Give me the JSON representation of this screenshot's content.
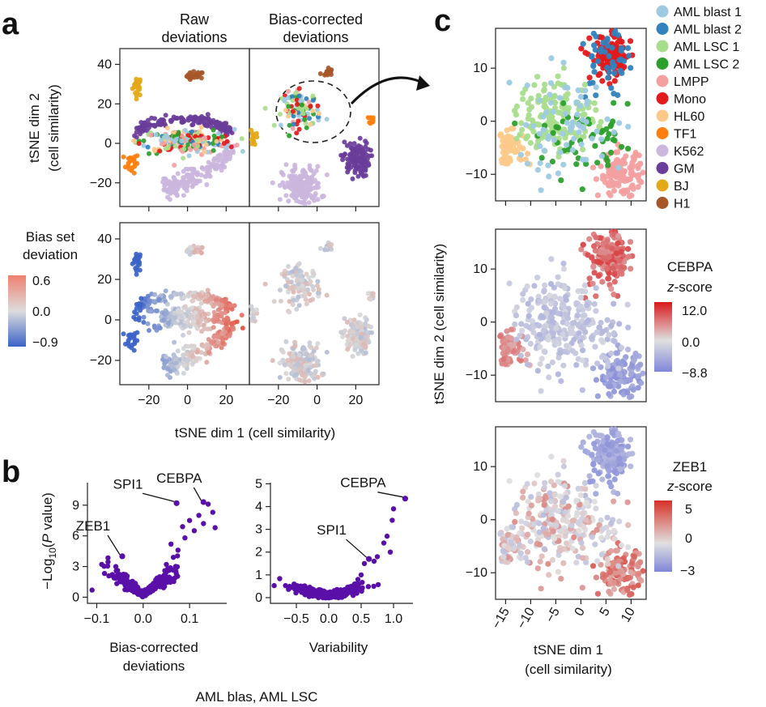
{
  "figure": {
    "panel_letters": [
      "a",
      "b",
      "c"
    ],
    "captions": {
      "bottom_note": "AML blas, AML LSC"
    }
  },
  "colors": {
    "AML blast 1": "#9ecae1",
    "AML blast 2": "#3182bd",
    "AML LSC 1": "#a8dd8c",
    "AML LSC 2": "#2ca02c",
    "LMPP": "#f4a0a0",
    "Mono": "#e31a1c",
    "HL60": "#fcc98a",
    "TF1": "#ff7f0e",
    "K562": "#cbb6dd",
    "GM": "#6a3d9a",
    "BJ": "#e3a916",
    "H1": "#a65628",
    "volcano": "#5a10a8",
    "div_low": "#3b63c8",
    "div_mid": "#d9d9d9",
    "div_high": "#e84c3d"
  },
  "chart_data": [
    {
      "id": "a_raw_celltype",
      "type": "scatter",
      "title": "Raw\ndeviations",
      "xlabel": "tSNE dim 1 (cell similarity)",
      "ylabel": "tSNE dim 2\n(cell similarity)",
      "xlim": [
        -35,
        32
      ],
      "ylim": [
        -32,
        48
      ],
      "xticks": [
        -20,
        0,
        20
      ],
      "yticks": [
        -20,
        0,
        20,
        40
      ],
      "clusters": [
        {
          "group": "BJ",
          "center": [
            -26,
            29
          ],
          "spread": [
            1.2,
            2.5
          ],
          "n": 22
        },
        {
          "group": "H1",
          "center": [
            4,
            34
          ],
          "spread": [
            2.2,
            1.2
          ],
          "n": 22
        },
        {
          "group": "TF1",
          "center": [
            -29,
            -10
          ],
          "spread": [
            2,
            2.5
          ],
          "n": 20
        },
        {
          "group": "GM",
          "shape": "arc",
          "center": [
            -2,
            6
          ],
          "radius": [
            24,
            9
          ],
          "n": 150
        },
        {
          "group": "K562",
          "shape": "swoosh",
          "center": [
            10,
            -14
          ],
          "n": 170
        },
        {
          "group": "mixed",
          "center": [
            0,
            1
          ],
          "spread": [
            12,
            3
          ],
          "n": 220
        }
      ]
    },
    {
      "id": "a_corrected_celltype",
      "type": "scatter",
      "title": "Bias-corrected\ndeviations",
      "xlim": [
        -35,
        32
      ],
      "ylim": [
        -32,
        48
      ],
      "xticks": [
        -20,
        0,
        20
      ],
      "clusters": [
        {
          "group": "H1",
          "center": [
            5,
            36
          ],
          "spread": [
            1.5,
            1.2
          ],
          "n": 15
        },
        {
          "group": "BJ",
          "center": [
            -33,
            3
          ],
          "spread": [
            0.8,
            2.5
          ],
          "n": 14
        },
        {
          "group": "TF1",
          "center": [
            29,
            12
          ],
          "spread": [
            1,
            1
          ],
          "n": 8
        },
        {
          "group": "GM",
          "center": [
            20,
            -8
          ],
          "spread": [
            3.5,
            4.5
          ],
          "n": 120
        },
        {
          "group": "K562",
          "center": [
            -8,
            -22
          ],
          "spread": [
            5,
            5
          ],
          "n": 180
        },
        {
          "group": "mixed",
          "center": [
            -8,
            17
          ],
          "spread": [
            5,
            4.5
          ],
          "n": 110
        }
      ]
    },
    {
      "id": "a_raw_bias",
      "type": "scatter",
      "colorbar": {
        "title": "Bias set\ndeviation",
        "ticks": [
          "0.6",
          "0.0",
          "−0.9"
        ]
      },
      "xlim": [
        -35,
        32
      ],
      "ylim": [
        -32,
        48
      ],
      "xticks": [
        -20,
        0,
        20
      ],
      "yticks": [
        -20,
        0,
        20,
        40
      ]
    },
    {
      "id": "a_corrected_bias",
      "type": "scatter",
      "xlim": [
        -35,
        32
      ],
      "ylim": [
        -32,
        48
      ],
      "xticks": [
        -20,
        0,
        20
      ]
    },
    {
      "id": "b_volcano_dev",
      "type": "scatter",
      "xlabel": "Bias-corrected\ndeviations",
      "ylabel": "−Log10(P value)",
      "xlim": [
        -0.12,
        0.18
      ],
      "ylim": [
        -0.6,
        11.2
      ],
      "xticks": [
        -0.1,
        0.0,
        0.1
      ],
      "xticklabels": [
        "−0.1",
        "0.0",
        "0.1"
      ],
      "yticks": [
        0,
        3,
        6,
        9
      ],
      "highlights": [
        {
          "label": "CEBPA",
          "x": 0.13,
          "y": 9.3
        },
        {
          "label": "SPI1",
          "x": 0.072,
          "y": 9.2
        },
        {
          "label": "ZEB1",
          "x": -0.045,
          "y": 4.0
        }
      ],
      "extra_points": [
        [
          0.14,
          9.1
        ],
        [
          0.15,
          8.3
        ],
        [
          0.155,
          6.8
        ],
        [
          0.12,
          8.0
        ],
        [
          0.11,
          6.5
        ],
        [
          0.1,
          7.5
        ],
        [
          0.09,
          5.8
        ],
        [
          0.13,
          7.2
        ],
        [
          0.085,
          6.9
        ],
        [
          0.06,
          5.2
        ],
        [
          0.075,
          4.6
        ],
        [
          0.065,
          3.9
        ],
        [
          0.05,
          3.2
        ],
        [
          0.07,
          3.0
        ],
        [
          -0.06,
          2.0
        ],
        [
          -0.05,
          1.6
        ],
        [
          -0.11,
          0.7
        ]
      ]
    },
    {
      "id": "b_variability",
      "type": "scatter",
      "xlabel": "Variability",
      "xlim": [
        -0.9,
        1.3
      ],
      "ylim": [
        -0.25,
        5.05
      ],
      "xticks": [
        -0.5,
        0.0,
        0.5,
        1.0
      ],
      "xticklabels": [
        "−0.5",
        "0.0",
        "0.5",
        "1.0"
      ],
      "yticks": [
        0,
        1,
        2,
        3,
        4,
        5
      ],
      "highlights": [
        {
          "label": "CEBPA",
          "x": 1.18,
          "y": 4.35
        },
        {
          "label": "SPI1",
          "x": 0.62,
          "y": 1.7
        }
      ],
      "extra_points": [
        [
          1.0,
          3.9
        ],
        [
          0.98,
          3.4
        ],
        [
          0.9,
          2.7
        ],
        [
          0.85,
          2.4
        ],
        [
          0.95,
          2.0
        ],
        [
          0.75,
          1.8
        ],
        [
          0.7,
          1.6
        ],
        [
          0.55,
          1.5
        ],
        [
          0.5,
          1.0
        ],
        [
          0.45,
          0.8
        ],
        [
          0.4,
          0.6
        ],
        [
          0.35,
          0.5
        ]
      ]
    },
    {
      "id": "c_celltype",
      "type": "scatter",
      "xlim": [
        -17,
        13
      ],
      "ylim": [
        -15,
        17.5
      ],
      "yticks": [
        -10,
        0,
        10
      ],
      "legend": [
        "AML blast 1",
        "AML blast 2",
        "AML LSC 1",
        "AML LSC 2",
        "LMPP",
        "Mono",
        "HL60",
        "TF1",
        "K562",
        "GM",
        "BJ",
        "H1"
      ]
    },
    {
      "id": "c_cebpa",
      "type": "scatter",
      "ylabel": "tSNE dim 2 (cell similarity)",
      "xlim": [
        -17,
        13
      ],
      "ylim": [
        -15,
        17.5
      ],
      "yticks": [
        -10,
        0,
        10
      ],
      "colorbar": {
        "title": "CEBPA\nz-score",
        "ticks": [
          "12.0",
          "0.0",
          "−8.8"
        ]
      }
    },
    {
      "id": "c_zeb1",
      "type": "scatter",
      "xlabel": "tSNE dim 1\n(cell similarity)",
      "xlim": [
        -17,
        13
      ],
      "ylim": [
        -15,
        17.5
      ],
      "xticks": [
        -15,
        -10,
        -5,
        0,
        5,
        10
      ],
      "xticklabels": [
        "−15",
        "−10",
        "−5",
        "0",
        "5",
        "10"
      ],
      "yticks": [
        -10,
        0,
        10
      ],
      "colorbar": {
        "title": "ZEB1\nz-score",
        "ticks": [
          "5",
          "0",
          "−3"
        ]
      }
    }
  ],
  "c_clusters": [
    {
      "group": "LMPP",
      "center": [
        8,
        -10
      ],
      "spread": [
        2.2,
        2.0
      ],
      "n": 120
    },
    {
      "group": "Mono",
      "center": [
        6,
        12
      ],
      "spread": [
        2.0,
        2.2
      ],
      "n": 120
    },
    {
      "group": "AML blast 2",
      "center": [
        5,
        11
      ],
      "spread": [
        2.5,
        3.5
      ],
      "n": 50
    },
    {
      "group": "HL60",
      "center": [
        -14,
        -5
      ],
      "spread": [
        1.6,
        1.5
      ],
      "n": 70
    },
    {
      "group": "AML LSC 1",
      "center": [
        -5,
        1
      ],
      "spread": [
        4,
        3.5
      ],
      "n": 150
    },
    {
      "group": "AML LSC 2",
      "center": [
        2,
        -4
      ],
      "spread": [
        5,
        3
      ],
      "n": 55
    },
    {
      "group": "AML blast 1",
      "center": [
        -3,
        -1
      ],
      "spread": [
        6,
        5
      ],
      "n": 70
    }
  ]
}
